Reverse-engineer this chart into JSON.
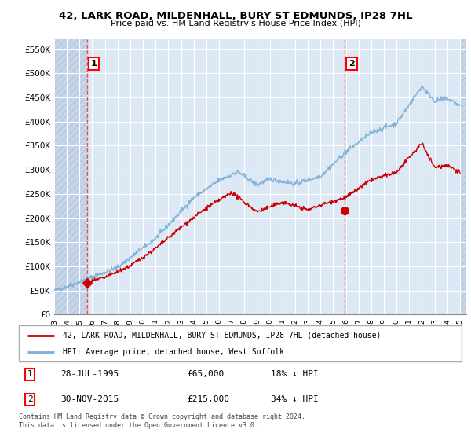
{
  "title": "42, LARK ROAD, MILDENHALL, BURY ST EDMUNDS, IP28 7HL",
  "subtitle": "Price paid vs. HM Land Registry's House Price Index (HPI)",
  "ylabel_ticks": [
    "£0",
    "£50K",
    "£100K",
    "£150K",
    "£200K",
    "£250K",
    "£300K",
    "£350K",
    "£400K",
    "£450K",
    "£500K",
    "£550K"
  ],
  "ytick_values": [
    0,
    50000,
    100000,
    150000,
    200000,
    250000,
    300000,
    350000,
    400000,
    450000,
    500000,
    550000
  ],
  "ylim": [
    0,
    570000
  ],
  "xlim_start": 1993.0,
  "xlim_end": 2025.5,
  "hpi_color": "#7aaed6",
  "price_color": "#cc0000",
  "bg_color": "#dce9f5",
  "hatch_color": "#c0d0e8",
  "grid_color": "#ffffff",
  "marker1_x": 1995.57,
  "marker1_y": 65000,
  "marker2_x": 2015.92,
  "marker2_y": 215000,
  "vline1_x": 1995.57,
  "vline2_x": 2015.92,
  "legend_line1": "42, LARK ROAD, MILDENHALL, BURY ST EDMUNDS, IP28 7HL (detached house)",
  "legend_line2": "HPI: Average price, detached house, West Suffolk",
  "table_row1": [
    "1",
    "28-JUL-1995",
    "£65,000",
    "18% ↓ HPI"
  ],
  "table_row2": [
    "2",
    "30-NOV-2015",
    "£215,000",
    "34% ↓ HPI"
  ],
  "footer": "Contains HM Land Registry data © Crown copyright and database right 2024.\nThis data is licensed under the Open Government Licence v3.0.",
  "xtick_years": [
    1993,
    1994,
    1995,
    1996,
    1997,
    1998,
    1999,
    2000,
    2001,
    2002,
    2003,
    2004,
    2005,
    2006,
    2007,
    2008,
    2009,
    2010,
    2011,
    2012,
    2013,
    2014,
    2015,
    2016,
    2017,
    2018,
    2019,
    2020,
    2021,
    2022,
    2023,
    2024,
    2025
  ]
}
